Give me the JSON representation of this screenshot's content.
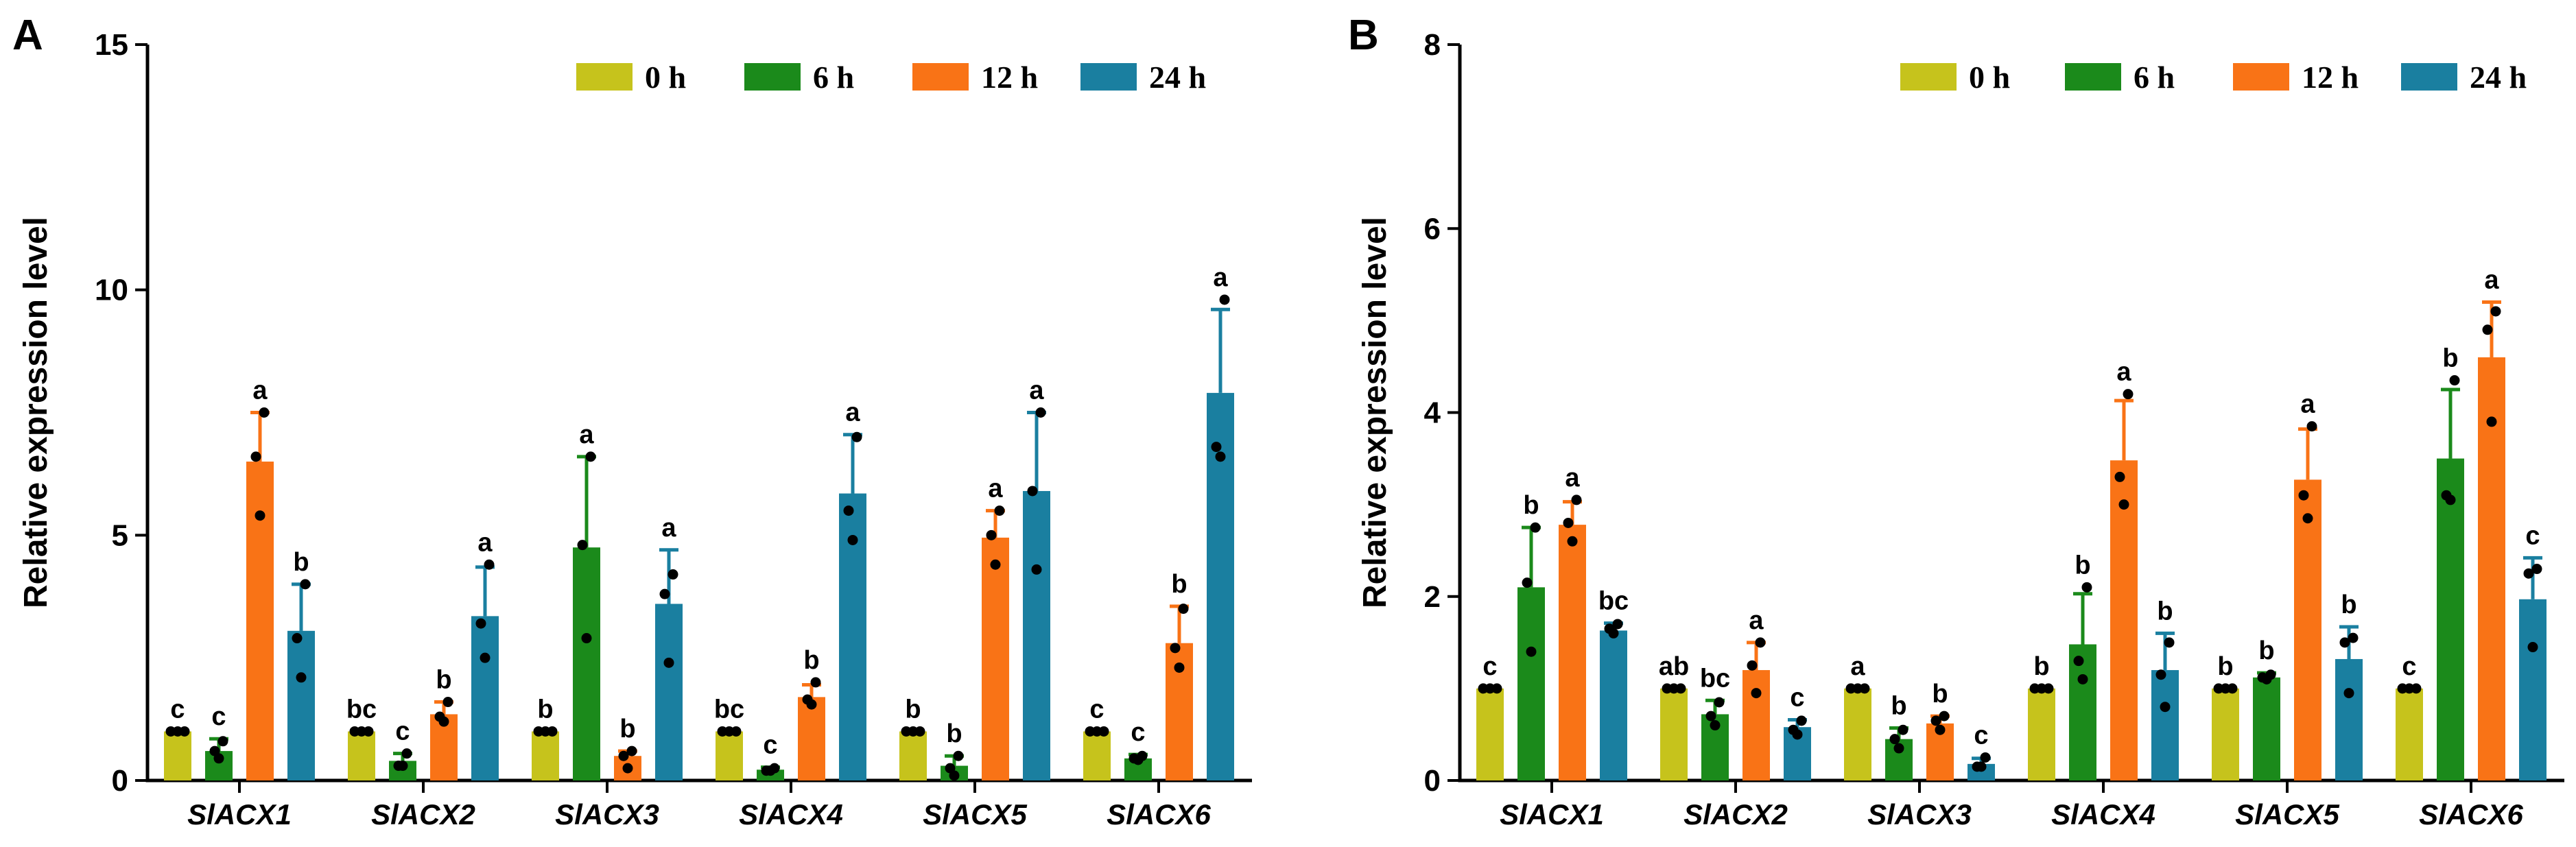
{
  "chart_data": [
    {
      "panel": "A",
      "type": "bar",
      "ylabel": "Relative expression level",
      "ylim": [
        0,
        15
      ],
      "yticks": [
        0,
        5,
        10,
        15
      ],
      "ytick_labels": [
        "0",
        "5",
        "10",
        "15"
      ],
      "categories": [
        "SlACX1",
        "SlACX2",
        "SlACX3",
        "SlACX4",
        "SlACX5",
        "SlACX6"
      ],
      "legend_position": "top-right",
      "series": [
        {
          "name": "0 h",
          "color": "#c6c31c",
          "values": [
            1.0,
            1.0,
            1.0,
            1.0,
            1.0,
            1.0
          ],
          "errors": [
            0.0,
            0.0,
            0.0,
            0.0,
            0.0,
            0.0
          ],
          "points": [
            [
              1.0,
              1.0,
              1.0
            ],
            [
              1.0,
              1.0,
              1.0
            ],
            [
              1.0,
              1.0,
              1.0
            ],
            [
              1.0,
              1.0,
              1.0
            ],
            [
              1.0,
              1.0,
              1.0
            ],
            [
              1.0,
              1.0,
              1.0
            ]
          ],
          "letters": [
            "c",
            "bc",
            "b",
            "bc",
            "b",
            "c"
          ]
        },
        {
          "name": "6 h",
          "color": "#1b8a1b",
          "values": [
            0.6,
            0.4,
            4.75,
            0.22,
            0.3,
            0.45
          ],
          "errors": [
            0.25,
            0.15,
            1.85,
            0.05,
            0.2,
            0.08
          ],
          "points": [
            [
              0.8,
              0.6,
              0.45
            ],
            [
              0.55,
              0.3,
              0.3
            ],
            [
              6.6,
              4.8,
              2.9
            ],
            [
              0.25,
              0.2,
              0.2
            ],
            [
              0.5,
              0.25,
              0.1
            ],
            [
              0.5,
              0.45,
              0.42
            ]
          ],
          "letters": [
            "c",
            "c",
            "a",
            "c",
            "b",
            "c"
          ]
        },
        {
          "name": "12 h",
          "color": "#f97316",
          "values": [
            6.5,
            1.35,
            0.5,
            1.7,
            4.95,
            2.8
          ],
          "errors": [
            1.0,
            0.25,
            0.1,
            0.25,
            0.55,
            0.75
          ],
          "points": [
            [
              7.5,
              6.6,
              5.4
            ],
            [
              1.6,
              1.3,
              1.2
            ],
            [
              0.6,
              0.5,
              0.25
            ],
            [
              2.0,
              1.65,
              1.55
            ],
            [
              5.5,
              5.0,
              4.4
            ],
            [
              3.5,
              2.7,
              2.3
            ]
          ],
          "letters": [
            "a",
            "b",
            "b",
            "b",
            "a",
            "b"
          ]
        },
        {
          "name": "24 h",
          "color": "#1a7fa0",
          "values": [
            3.05,
            3.35,
            3.6,
            5.85,
            5.9,
            7.9
          ],
          "errors": [
            0.95,
            1.0,
            1.1,
            1.2,
            1.6,
            1.7
          ],
          "points": [
            [
              4.0,
              2.9,
              2.1
            ],
            [
              4.4,
              3.2,
              2.5
            ],
            [
              4.2,
              3.8,
              2.4
            ],
            [
              7.0,
              5.5,
              4.9
            ],
            [
              7.5,
              5.9,
              4.3
            ],
            [
              9.8,
              6.8,
              6.6
            ]
          ],
          "letters": [
            "b",
            "a",
            "a",
            "a",
            "a",
            "a"
          ]
        }
      ]
    },
    {
      "panel": "B",
      "type": "bar",
      "ylabel": "Relative expression level",
      "ylim": [
        0,
        8
      ],
      "yticks": [
        0,
        2,
        4,
        6,
        8
      ],
      "ytick_labels": [
        "0",
        "2",
        "4",
        "6",
        "8"
      ],
      "categories": [
        "SlACX1",
        "SlACX2",
        "SlACX3",
        "SlACX4",
        "SlACX5",
        "SlACX6"
      ],
      "legend_position": "top-right",
      "series": [
        {
          "name": "0 h",
          "color": "#c6c31c",
          "values": [
            1.0,
            1.0,
            1.0,
            1.0,
            1.0,
            1.0
          ],
          "errors": [
            0.0,
            0.0,
            0.0,
            0.0,
            0.0,
            0.0
          ],
          "points": [
            [
              1.0,
              1.0,
              1.0
            ],
            [
              1.0,
              1.0,
              1.0
            ],
            [
              1.0,
              1.0,
              1.0
            ],
            [
              1.0,
              1.0,
              1.0
            ],
            [
              1.0,
              1.0,
              1.0
            ],
            [
              1.0,
              1.0,
              1.0
            ]
          ],
          "letters": [
            "c",
            "ab",
            "a",
            "b",
            "b",
            "c"
          ]
        },
        {
          "name": "6 h",
          "color": "#1b8a1b",
          "values": [
            2.1,
            0.72,
            0.45,
            1.48,
            1.12,
            3.5
          ],
          "errors": [
            0.65,
            0.15,
            0.12,
            0.55,
            0.05,
            0.75
          ],
          "points": [
            [
              2.75,
              2.15,
              1.4
            ],
            [
              0.85,
              0.7,
              0.6
            ],
            [
              0.55,
              0.45,
              0.35
            ],
            [
              2.1,
              1.3,
              1.1
            ],
            [
              1.15,
              1.12,
              1.1
            ],
            [
              4.35,
              3.1,
              3.05
            ]
          ],
          "letters": [
            "b",
            "bc",
            "b",
            "b",
            "b",
            "b"
          ]
        },
        {
          "name": "12 h",
          "color": "#f97316",
          "values": [
            2.78,
            1.2,
            0.62,
            3.48,
            3.27,
            4.6
          ],
          "errors": [
            0.25,
            0.3,
            0.08,
            0.65,
            0.55,
            0.6
          ],
          "points": [
            [
              3.05,
              2.8,
              2.6
            ],
            [
              1.5,
              1.25,
              0.95
            ],
            [
              0.7,
              0.65,
              0.55
            ],
            [
              4.2,
              3.3,
              3.0
            ],
            [
              3.85,
              3.1,
              2.85
            ],
            [
              5.1,
              4.9,
              3.9
            ]
          ],
          "letters": [
            "a",
            "a",
            "b",
            "a",
            "a",
            "a"
          ]
        },
        {
          "name": "24 h",
          "color": "#1a7fa0",
          "values": [
            1.63,
            0.58,
            0.18,
            1.2,
            1.32,
            1.97
          ],
          "errors": [
            0.08,
            0.08,
            0.06,
            0.4,
            0.35,
            0.45
          ],
          "points": [
            [
              1.7,
              1.65,
              1.6
            ],
            [
              0.65,
              0.55,
              0.5
            ],
            [
              0.25,
              0.15,
              0.15
            ],
            [
              1.5,
              1.15,
              0.8
            ],
            [
              1.55,
              1.5,
              0.95
            ],
            [
              2.3,
              2.25,
              1.45
            ]
          ],
          "letters": [
            "bc",
            "c",
            "c",
            "b",
            "b",
            "c"
          ]
        }
      ]
    }
  ]
}
